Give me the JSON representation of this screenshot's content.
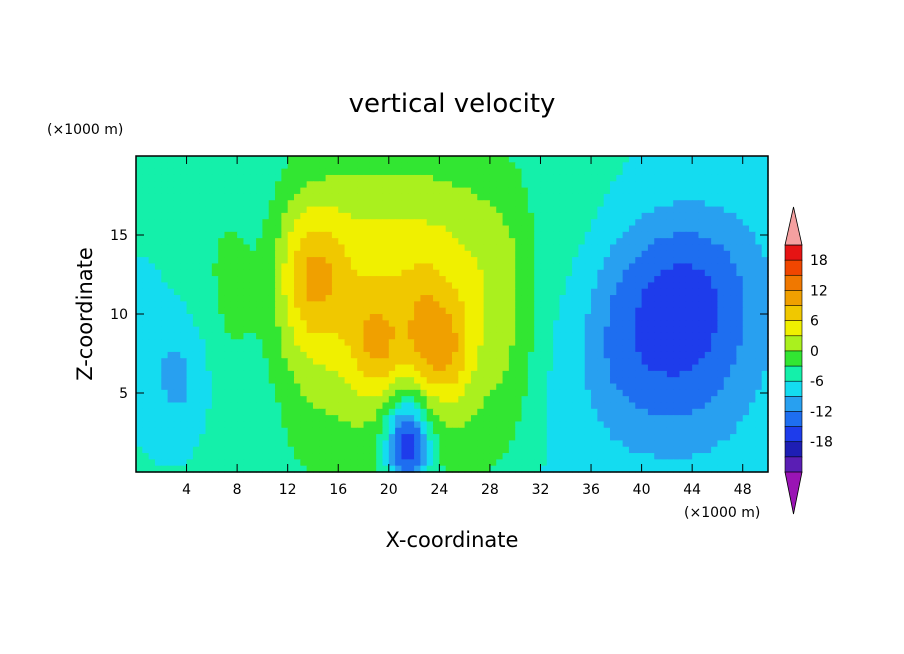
{
  "chart_data": {
    "type": "heatmap",
    "title": "vertical velocity",
    "xlabel": "X-coordinate",
    "ylabel": "Z-coordinate",
    "x_unit": "(×1000 m)",
    "y_unit": "(×1000 m)",
    "xlim": [
      0,
      50
    ],
    "ylim": [
      0,
      20
    ],
    "x_ticks": [
      4,
      8,
      12,
      16,
      20,
      24,
      28,
      32,
      36,
      40,
      44,
      48
    ],
    "y_ticks": [
      5,
      10,
      15
    ],
    "colorbar": {
      "levels": [
        -21,
        -18,
        -15,
        -12,
        -9,
        -6,
        -3,
        0,
        3,
        6,
        9,
        12,
        15,
        18,
        21
      ],
      "tick_labels": [
        "18",
        "12",
        "6",
        "0",
        "-6",
        "-12",
        "-18"
      ],
      "tick_values": [
        18,
        12,
        6,
        0,
        -6,
        -12,
        -18
      ],
      "colors": [
        "#9a14b4",
        "#5a1eb4",
        "#1e1eb4",
        "#1e3ceb",
        "#1e6ef0",
        "#28a0f0",
        "#14dcf0",
        "#14f0aa",
        "#32e632",
        "#aaf01e",
        "#f0f000",
        "#f0c800",
        "#f0a000",
        "#f07800",
        "#f04600",
        "#e61414",
        "#f5a0a0"
      ],
      "extend_low_color": "#9a14b4",
      "extend_high_color": "#f5a0a0"
    },
    "field": {
      "background": -3,
      "features": [
        {
          "x": 20.5,
          "z": 9.5,
          "sx": 10.0,
          "sz": 7.5,
          "amp": 8
        },
        {
          "x": 21,
          "z": 13,
          "sx": 9.5,
          "sz": 5.5,
          "amp": 4
        },
        {
          "x": 14,
          "z": 12.5,
          "sx": 1.8,
          "sz": 3.0,
          "amp": 7
        },
        {
          "x": 19,
          "z": 8,
          "sx": 1.4,
          "sz": 2.0,
          "amp": 6
        },
        {
          "x": 23,
          "z": 8.5,
          "sx": 1.2,
          "sz": 2.6,
          "amp": 6
        },
        {
          "x": 25,
          "z": 7.5,
          "sx": 1.1,
          "sz": 2.3,
          "amp": 5
        },
        {
          "x": 21.5,
          "z": 2,
          "sx": 1.2,
          "sz": 2.0,
          "amp": -16
        },
        {
          "x": 10,
          "z": 10,
          "sx": 1.5,
          "sz": 10,
          "amp": -3
        },
        {
          "x": 32.5,
          "z": 10,
          "sx": 1.5,
          "sz": 10,
          "amp": -2.5
        },
        {
          "x": 43,
          "z": 8.5,
          "sx": 4.5,
          "sz": 5.0,
          "amp": -10
        },
        {
          "x": 37,
          "z": 8,
          "sx": 3.0,
          "sz": 5.0,
          "amp": -4
        },
        {
          "x": 44,
          "z": 13,
          "sx": 4.5,
          "sz": 3.0,
          "amp": -3
        },
        {
          "x": 3.5,
          "z": 6,
          "sx": 2.0,
          "sz": 3.0,
          "amp": -5
        },
        {
          "x": 2,
          "z": 12,
          "sx": 3.0,
          "sz": 5.0,
          "amp": -1.5
        }
      ]
    }
  }
}
